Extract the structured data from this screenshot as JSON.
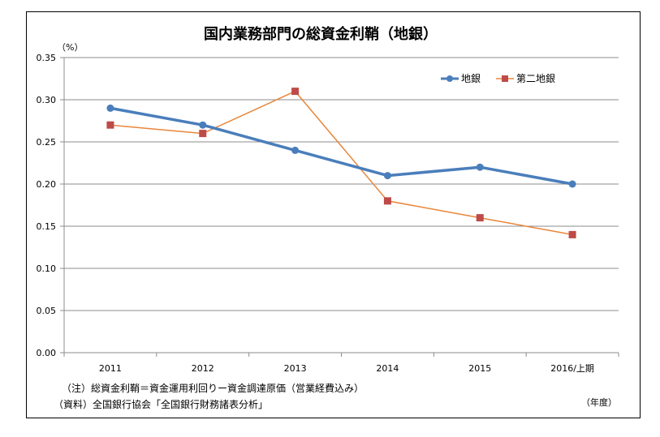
{
  "chart_data": {
    "type": "line",
    "title": "国内業務部門の総資金利鞘（地銀）",
    "yunit": "（%）",
    "xunit": "（年度）",
    "categories": [
      "2011",
      "2012",
      "2013",
      "2014",
      "2015",
      "2016/上期"
    ],
    "ylim": [
      0,
      0.35
    ],
    "yticks": [
      "0.00",
      "0.05",
      "0.10",
      "0.15",
      "0.20",
      "0.25",
      "0.30",
      "0.35"
    ],
    "grid": true,
    "legend_position": "top-right",
    "series": [
      {
        "name": "地銀",
        "values": [
          0.29,
          0.27,
          0.24,
          0.21,
          0.22,
          0.2
        ],
        "color": "#4a7ebb",
        "marker": "circle"
      },
      {
        "name": "第二地銀",
        "values": [
          0.27,
          0.26,
          0.31,
          0.18,
          0.16,
          0.14
        ],
        "color": "#e8863a",
        "marker_color": "#be4b48",
        "marker": "square"
      }
    ],
    "notes": [
      "（注）総資金利鞘＝資金運用利回りー資金調達原価（営業経費込み）",
      "（資料）全国銀行協会「全国銀行財務諸表分析」"
    ]
  }
}
